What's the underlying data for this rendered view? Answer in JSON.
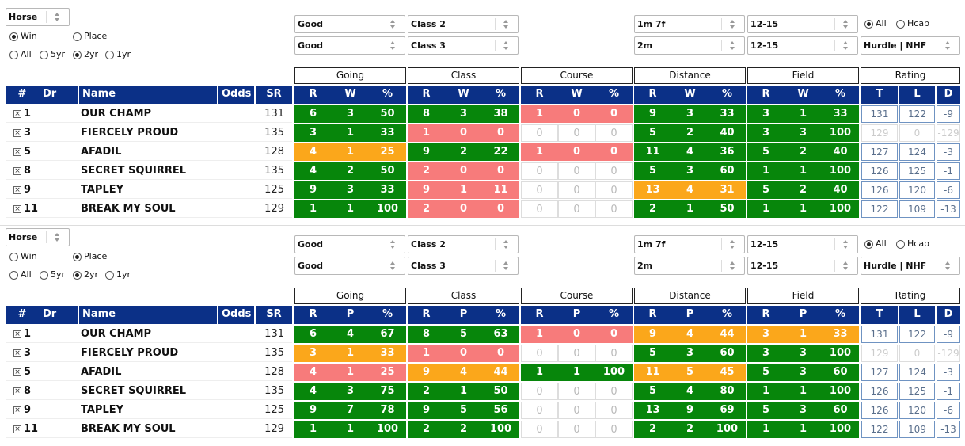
{
  "palette": {
    "green": "#07860b",
    "orange": "#fba71b",
    "red": "#f77b7b",
    "none": "#ffffff"
  },
  "panels": [
    {
      "selectors": {
        "sort": "Horse",
        "going": [
          "Good",
          "Good"
        ],
        "class": [
          "Class 2",
          "Class 3"
        ],
        "distance": [
          "1m 7f",
          "2m"
        ],
        "field": [
          "12-15",
          "12-15"
        ],
        "race_type": "Hurdle | NHF"
      },
      "radios": {
        "mode": [
          "Win",
          "Place"
        ],
        "mode_selected": 0,
        "period": [
          "All",
          "5yr",
          "2yr",
          "1yr"
        ],
        "period_selected": 2,
        "hcap": [
          "All",
          "Hcap"
        ],
        "hcap_selected": 0
      },
      "group_headers": [
        "Going",
        "Class",
        "Course",
        "Distance",
        "Field",
        "Rating"
      ],
      "columns": [
        "#",
        "Dr",
        "Name",
        "Odds",
        "SR",
        "R",
        "W",
        "%",
        "R",
        "W",
        "%",
        "R",
        "W",
        "%",
        "R",
        "W",
        "%",
        "R",
        "W",
        "%",
        "T",
        "L",
        "D"
      ],
      "rows": [
        {
          "number": 1,
          "name": "OUR CHAMP",
          "sr": 131,
          "stats": [
            6,
            3,
            50,
            8,
            3,
            38,
            1,
            0,
            0,
            9,
            3,
            33,
            3,
            1,
            33
          ],
          "rating": [
            131,
            122,
            -9
          ],
          "shading": [
            "green",
            "green",
            "red",
            "green",
            "green"
          ],
          "rating_faded": false
        },
        {
          "number": 3,
          "name": "FIERCELY PROUD",
          "sr": 135,
          "stats": [
            3,
            1,
            33,
            1,
            0,
            0,
            0,
            0,
            0,
            5,
            2,
            40,
            3,
            3,
            100
          ],
          "rating": [
            129,
            0,
            -129
          ],
          "shading": [
            "green",
            "red",
            "none",
            "green",
            "green"
          ],
          "rating_faded": true
        },
        {
          "number": 5,
          "name": "AFADIL",
          "sr": 128,
          "stats": [
            4,
            1,
            25,
            9,
            2,
            22,
            1,
            0,
            0,
            11,
            4,
            36,
            5,
            2,
            40
          ],
          "rating": [
            127,
            124,
            -3
          ],
          "shading": [
            "orange",
            "green",
            "red",
            "green",
            "green"
          ],
          "rating_faded": false
        },
        {
          "number": 8,
          "name": "SECRET SQUIRREL",
          "sr": 135,
          "stats": [
            4,
            2,
            50,
            2,
            0,
            0,
            0,
            0,
            0,
            5,
            3,
            60,
            1,
            1,
            100
          ],
          "rating": [
            126,
            125,
            -1
          ],
          "shading": [
            "green",
            "red",
            "none",
            "green",
            "green"
          ],
          "rating_faded": false
        },
        {
          "number": 9,
          "name": "TAPLEY",
          "sr": 125,
          "stats": [
            9,
            3,
            33,
            9,
            1,
            11,
            0,
            0,
            0,
            13,
            4,
            31,
            5,
            2,
            40
          ],
          "rating": [
            126,
            120,
            -6
          ],
          "shading": [
            "green",
            "red",
            "none",
            "orange",
            "green"
          ],
          "rating_faded": false
        },
        {
          "number": 11,
          "name": "BREAK MY SOUL",
          "sr": 129,
          "stats": [
            1,
            1,
            100,
            2,
            0,
            0,
            0,
            0,
            0,
            2,
            1,
            50,
            1,
            1,
            100
          ],
          "rating": [
            122,
            109,
            -13
          ],
          "shading": [
            "green",
            "red",
            "none",
            "green",
            "green"
          ],
          "rating_faded": false
        }
      ]
    },
    {
      "selectors": {
        "sort": "Horse",
        "going": [
          "Good",
          "Good"
        ],
        "class": [
          "Class 2",
          "Class 3"
        ],
        "distance": [
          "1m 7f",
          "2m"
        ],
        "field": [
          "12-15",
          "12-15"
        ],
        "race_type": "Hurdle | NHF"
      },
      "radios": {
        "mode": [
          "Win",
          "Place"
        ],
        "mode_selected": 1,
        "period": [
          "All",
          "5yr",
          "2yr",
          "1yr"
        ],
        "period_selected": 2,
        "hcap": [
          "All",
          "Hcap"
        ],
        "hcap_selected": 0
      },
      "group_headers": [
        "Going",
        "Class",
        "Course",
        "Distance",
        "Field",
        "Rating"
      ],
      "columns": [
        "#",
        "Dr",
        "Name",
        "Odds",
        "SR",
        "R",
        "P",
        "%",
        "R",
        "P",
        "%",
        "R",
        "P",
        "%",
        "R",
        "P",
        "%",
        "R",
        "P",
        "%",
        "T",
        "L",
        "D"
      ],
      "rows": [
        {
          "number": 1,
          "name": "OUR CHAMP",
          "sr": 131,
          "stats": [
            6,
            4,
            67,
            8,
            5,
            63,
            1,
            0,
            0,
            9,
            4,
            44,
            3,
            1,
            33
          ],
          "rating": [
            131,
            122,
            -9
          ],
          "shading": [
            "green",
            "green",
            "red",
            "orange",
            "orange"
          ],
          "rating_faded": false
        },
        {
          "number": 3,
          "name": "FIERCELY PROUD",
          "sr": 135,
          "stats": [
            3,
            1,
            33,
            1,
            0,
            0,
            0,
            0,
            0,
            5,
            3,
            60,
            3,
            3,
            100
          ],
          "rating": [
            129,
            0,
            -129
          ],
          "shading": [
            "orange",
            "red",
            "none",
            "green",
            "green"
          ],
          "rating_faded": true
        },
        {
          "number": 5,
          "name": "AFADIL",
          "sr": 128,
          "stats": [
            4,
            1,
            25,
            9,
            4,
            44,
            1,
            1,
            100,
            11,
            5,
            45,
            5,
            3,
            60
          ],
          "rating": [
            127,
            124,
            -3
          ],
          "shading": [
            "red",
            "orange",
            "green",
            "orange",
            "green"
          ],
          "rating_faded": false
        },
        {
          "number": 8,
          "name": "SECRET SQUIRREL",
          "sr": 135,
          "stats": [
            4,
            3,
            75,
            2,
            1,
            50,
            0,
            0,
            0,
            5,
            4,
            80,
            1,
            1,
            100
          ],
          "rating": [
            126,
            125,
            -1
          ],
          "shading": [
            "green",
            "green",
            "none",
            "green",
            "green"
          ],
          "rating_faded": false
        },
        {
          "number": 9,
          "name": "TAPLEY",
          "sr": 125,
          "stats": [
            9,
            7,
            78,
            9,
            5,
            56,
            0,
            0,
            0,
            13,
            9,
            69,
            5,
            3,
            60
          ],
          "rating": [
            126,
            120,
            -6
          ],
          "shading": [
            "green",
            "green",
            "none",
            "green",
            "green"
          ],
          "rating_faded": false
        },
        {
          "number": 11,
          "name": "BREAK MY SOUL",
          "sr": 129,
          "stats": [
            1,
            1,
            100,
            2,
            2,
            100,
            0,
            0,
            0,
            2,
            2,
            100,
            1,
            1,
            100
          ],
          "rating": [
            122,
            109,
            -13
          ],
          "shading": [
            "green",
            "green",
            "none",
            "green",
            "green"
          ],
          "rating_faded": false
        }
      ]
    }
  ]
}
